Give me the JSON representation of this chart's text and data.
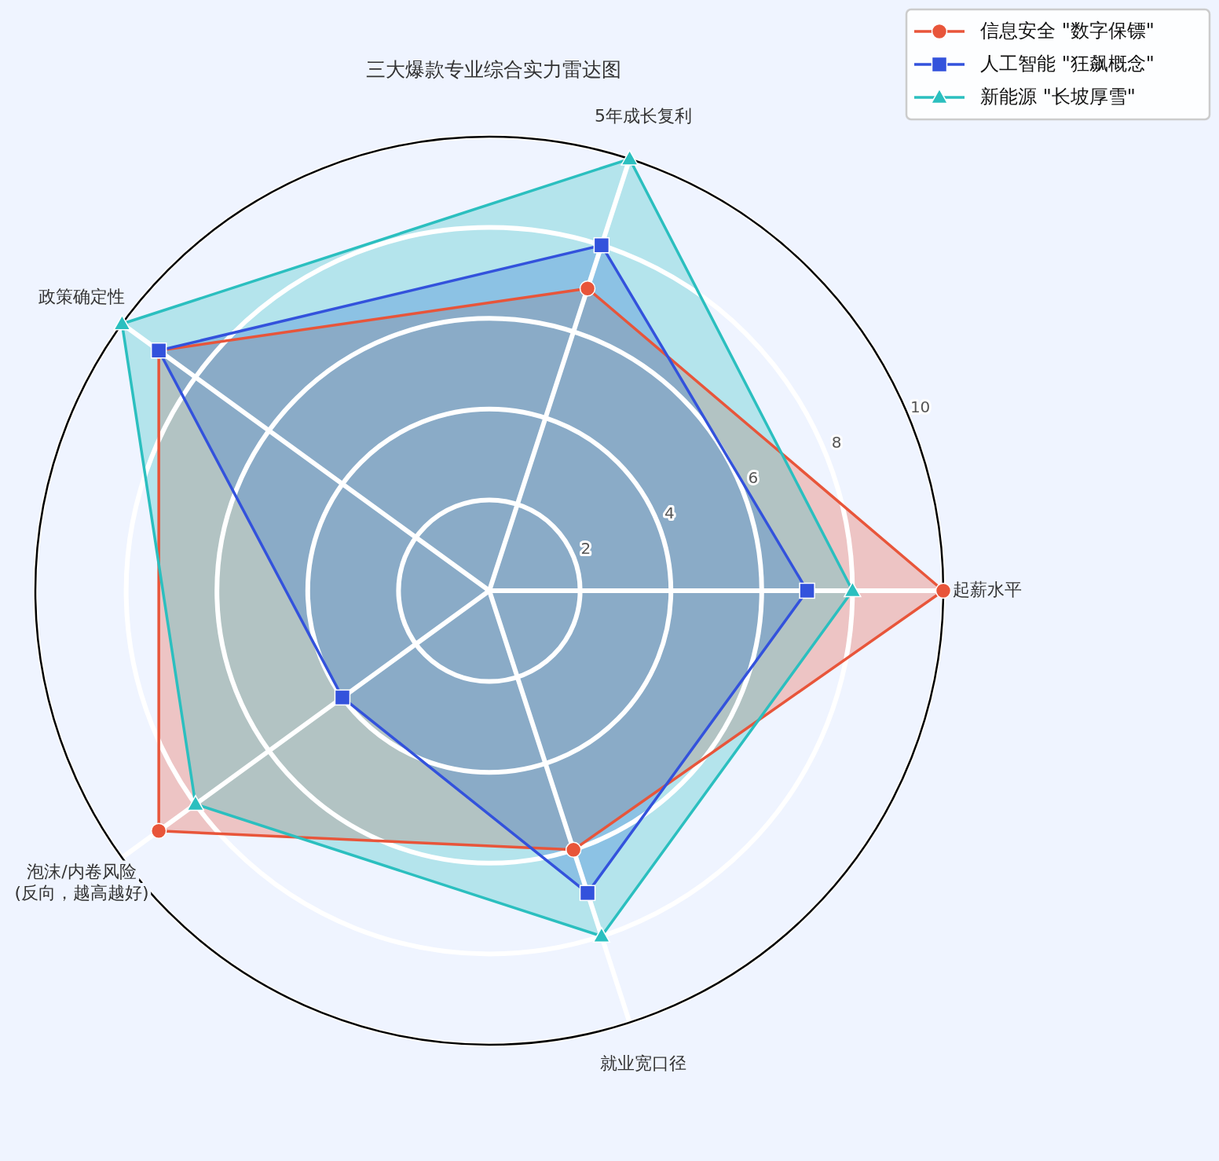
{
  "chart_data": {
    "type": "radar",
    "title": "三大爆款专业综合实力雷达图",
    "categories": [
      "5年成长复利",
      "起薪水平",
      "就业宽口径",
      "泡沫/内卷风险\n(反向，越高越好)",
      "政策确定性"
    ],
    "series": [
      {
        "name": "信息安全 \"数字保镖\"",
        "color": "#e8553a",
        "marker": "circle",
        "values": [
          7,
          10,
          6,
          9,
          9
        ]
      },
      {
        "name": "人工智能 \"狂飙概念\"",
        "color": "#3352dc",
        "marker": "square",
        "values": [
          8,
          7,
          7,
          4,
          9
        ]
      },
      {
        "name": "新能源 \"长坡厚雪\"",
        "color": "#2bbfbf",
        "marker": "triangle",
        "values": [
          10,
          8,
          8,
          8,
          10
        ]
      }
    ],
    "ylim": [
      0,
      10
    ],
    "yticks": [
      2,
      4,
      6,
      8,
      10
    ],
    "grid": true,
    "legend": "top right",
    "line_style": "solid"
  }
}
